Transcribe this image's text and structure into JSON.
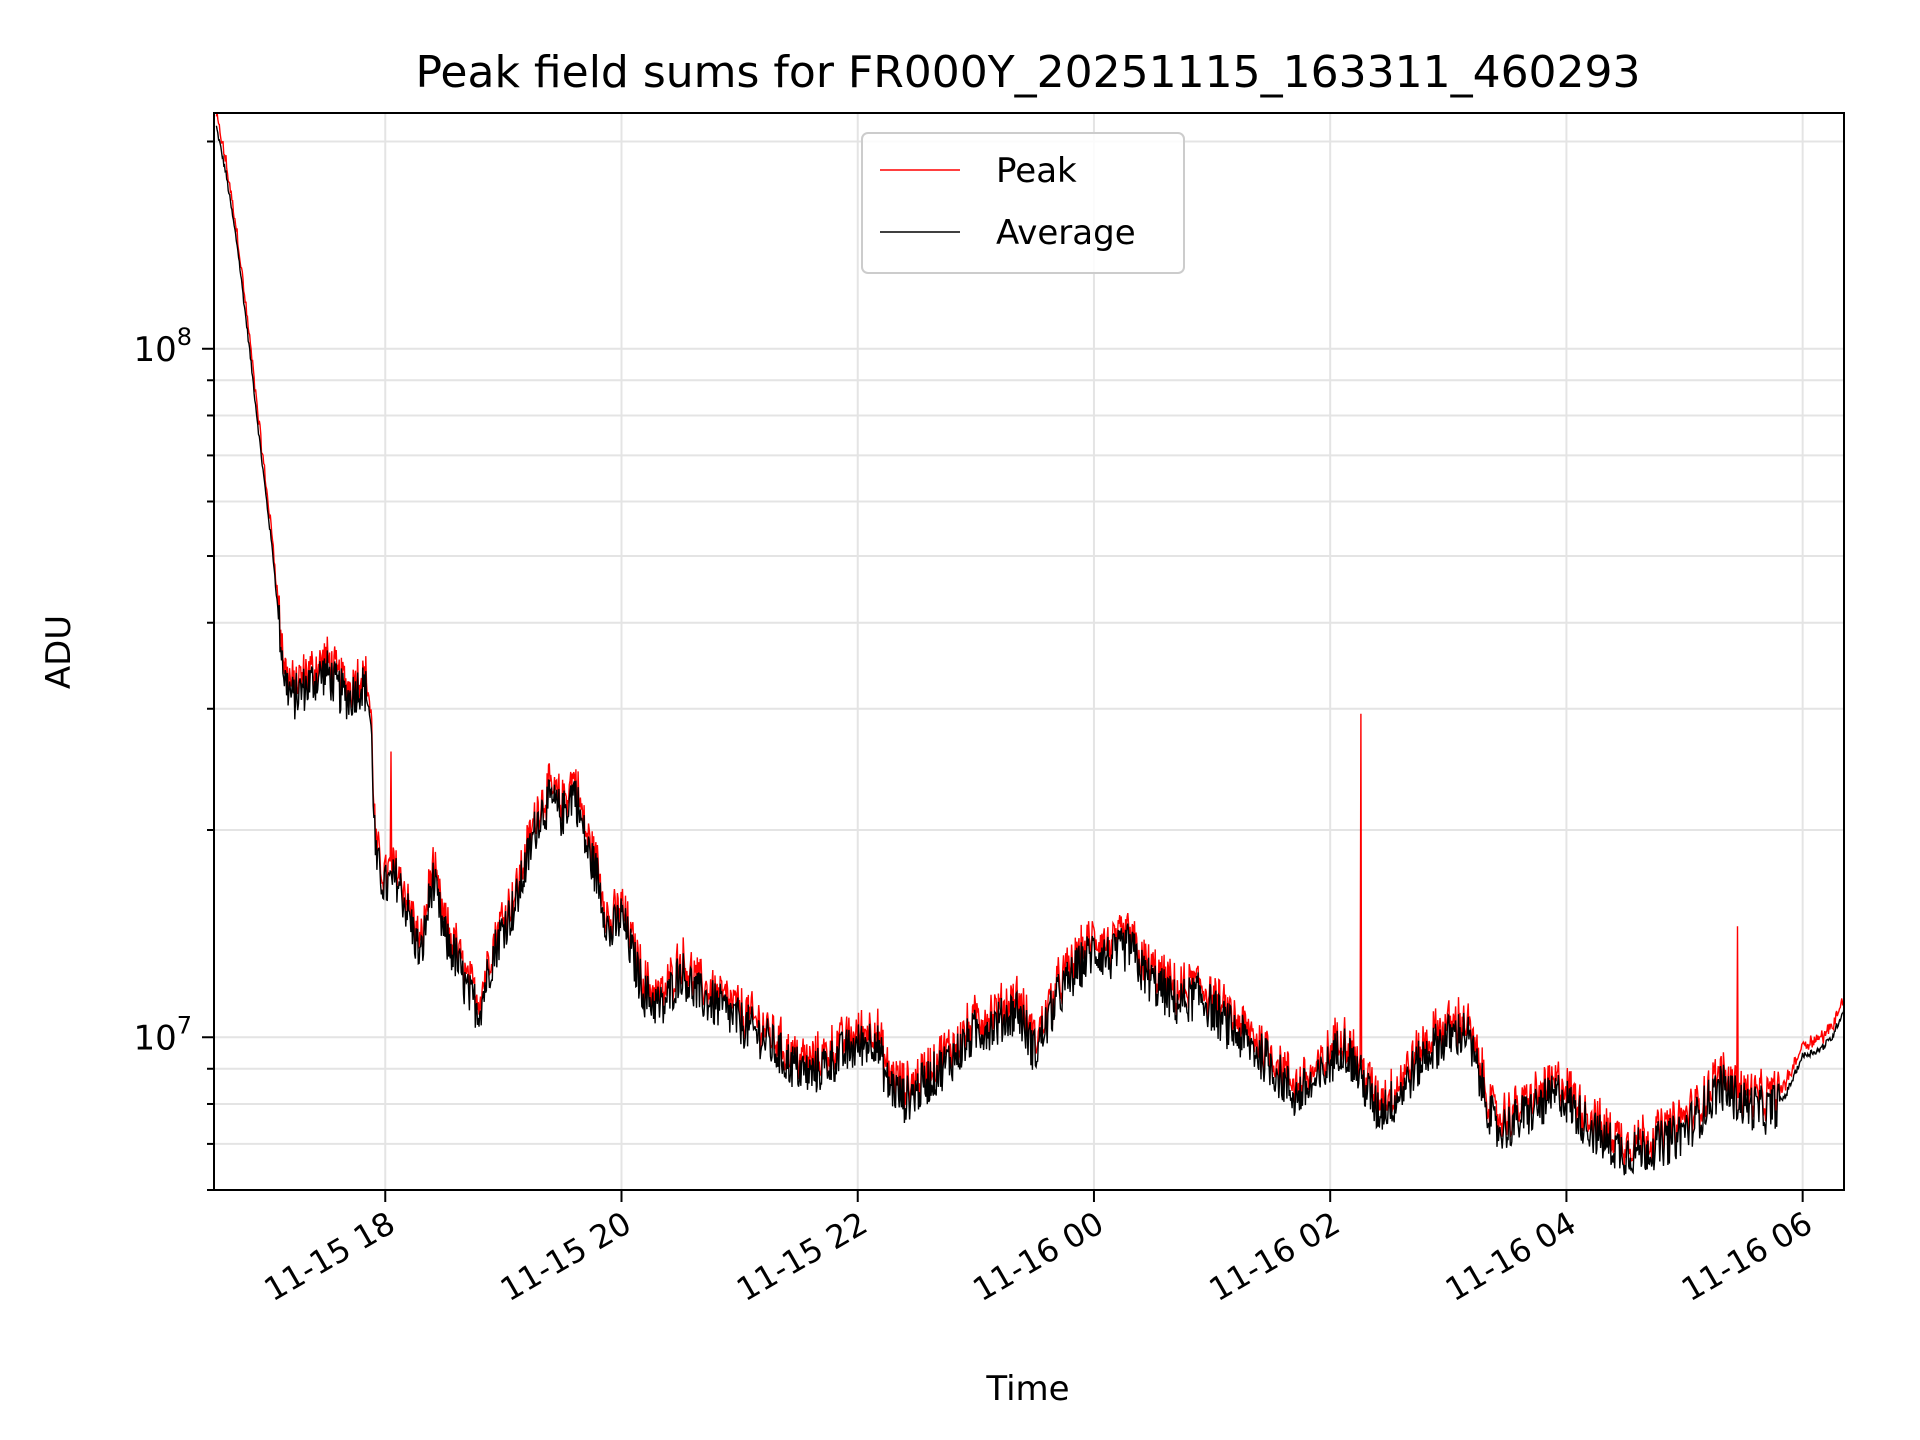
{
  "chart_data": {
    "type": "line",
    "title": "Peak field sums for FR000Y_20251115_163311_460293",
    "xlabel": "Time",
    "ylabel": "ADU",
    "yscale": "log",
    "xlim_hours": [
      -1.45,
      12.35
    ],
    "ylim": [
      6000000,
      220000000
    ],
    "x_ticks": [
      {
        "hours": 0,
        "label": "11-15 18"
      },
      {
        "hours": 2,
        "label": "11-15 20"
      },
      {
        "hours": 4,
        "label": "11-15 22"
      },
      {
        "hours": 6,
        "label": "11-16 00"
      },
      {
        "hours": 8,
        "label": "11-16 02"
      },
      {
        "hours": 10,
        "label": "11-16 04"
      },
      {
        "hours": 12,
        "label": "11-16 06"
      }
    ],
    "y_ticks": [
      {
        "value": 10000000,
        "base": "10",
        "exp": "7"
      },
      {
        "value": 100000000,
        "base": "10",
        "exp": "8"
      }
    ],
    "grid": true,
    "legend_position": "top-center",
    "x_reference": "hours relative to 11-15 18:00",
    "series": [
      {
        "name": "Peak",
        "color": "#ff0000",
        "line_width": 1
      },
      {
        "name": "Average",
        "color": "#000000",
        "line_width": 1
      }
    ],
    "average_trend": [
      [
        -1.43,
        210000000
      ],
      [
        -1.35,
        180000000
      ],
      [
        -1.25,
        140000000
      ],
      [
        -1.15,
        100000000
      ],
      [
        -1.05,
        70000000
      ],
      [
        -0.95,
        50000000
      ],
      [
        -0.9,
        40000000
      ],
      [
        -0.85,
        33000000
      ],
      [
        -0.78,
        31000000
      ],
      [
        -0.7,
        32000000
      ],
      [
        -0.6,
        33000000
      ],
      [
        -0.5,
        34000000
      ],
      [
        -0.4,
        32000000
      ],
      [
        -0.3,
        31000000
      ],
      [
        -0.25,
        32000000
      ],
      [
        -0.2,
        32500000
      ],
      [
        -0.15,
        31500000
      ],
      [
        -0.12,
        28000000
      ],
      [
        -0.08,
        18000000
      ],
      [
        0.0,
        16500000
      ],
      [
        0.1,
        17000000
      ],
      [
        0.2,
        15000000
      ],
      [
        0.3,
        13000000
      ],
      [
        0.4,
        17000000
      ],
      [
        0.5,
        14000000
      ],
      [
        0.6,
        13000000
      ],
      [
        0.7,
        11500000
      ],
      [
        0.8,
        11000000
      ],
      [
        0.9,
        13000000
      ],
      [
        1.0,
        14500000
      ],
      [
        1.1,
        15500000
      ],
      [
        1.2,
        18000000
      ],
      [
        1.3,
        21000000
      ],
      [
        1.4,
        22000000
      ],
      [
        1.5,
        21000000
      ],
      [
        1.6,
        23000000
      ],
      [
        1.7,
        19000000
      ],
      [
        1.8,
        17000000
      ],
      [
        1.9,
        14000000
      ],
      [
        2.0,
        15000000
      ],
      [
        2.1,
        13000000
      ],
      [
        2.2,
        11500000
      ],
      [
        2.35,
        11000000
      ],
      [
        2.5,
        12500000
      ],
      [
        2.65,
        11500000
      ],
      [
        2.85,
        11000000
      ],
      [
        3.0,
        10500000
      ],
      [
        3.2,
        10000000
      ],
      [
        3.4,
        9200000
      ],
      [
        3.6,
        8800000
      ],
      [
        3.8,
        9300000
      ],
      [
        4.0,
        9700000
      ],
      [
        4.15,
        10000000
      ],
      [
        4.25,
        8600000
      ],
      [
        4.4,
        8100000
      ],
      [
        4.55,
        8500000
      ],
      [
        4.7,
        9000000
      ],
      [
        4.85,
        9500000
      ],
      [
        5.0,
        10200000
      ],
      [
        5.2,
        10500000
      ],
      [
        5.35,
        11000000
      ],
      [
        5.5,
        9500000
      ],
      [
        5.7,
        11500000
      ],
      [
        5.9,
        12800000
      ],
      [
        6.0,
        13400000
      ],
      [
        6.15,
        13000000
      ],
      [
        6.3,
        13600000
      ],
      [
        6.4,
        12500000
      ],
      [
        6.5,
        12000000
      ],
      [
        6.7,
        11200000
      ],
      [
        6.9,
        11500000
      ],
      [
        7.1,
        10500000
      ],
      [
        7.3,
        9800000
      ],
      [
        7.5,
        9100000
      ],
      [
        7.7,
        8200000
      ],
      [
        7.9,
        8600000
      ],
      [
        8.1,
        9800000
      ],
      [
        8.25,
        8800000
      ],
      [
        8.4,
        7800000
      ],
      [
        8.55,
        8100000
      ],
      [
        8.7,
        8900000
      ],
      [
        8.85,
        9600000
      ],
      [
        9.0,
        10000000
      ],
      [
        9.15,
        10200000
      ],
      [
        9.25,
        8900000
      ],
      [
        9.4,
        7300000
      ],
      [
        9.55,
        7500000
      ],
      [
        9.75,
        7900000
      ],
      [
        9.95,
        8300000
      ],
      [
        10.1,
        7700000
      ],
      [
        10.3,
        7100000
      ],
      [
        10.5,
        6800000
      ],
      [
        10.7,
        6900000
      ],
      [
        10.9,
        7100000
      ],
      [
        11.1,
        7600000
      ],
      [
        11.3,
        8500000
      ],
      [
        11.5,
        8000000
      ],
      [
        11.7,
        7800000
      ],
      [
        11.85,
        8200000
      ],
      [
        12.0,
        9400000
      ],
      [
        12.15,
        9600000
      ],
      [
        12.25,
        10000000
      ],
      [
        12.35,
        11000000
      ]
    ],
    "annotations_note": "visual chart; values approximate"
  }
}
